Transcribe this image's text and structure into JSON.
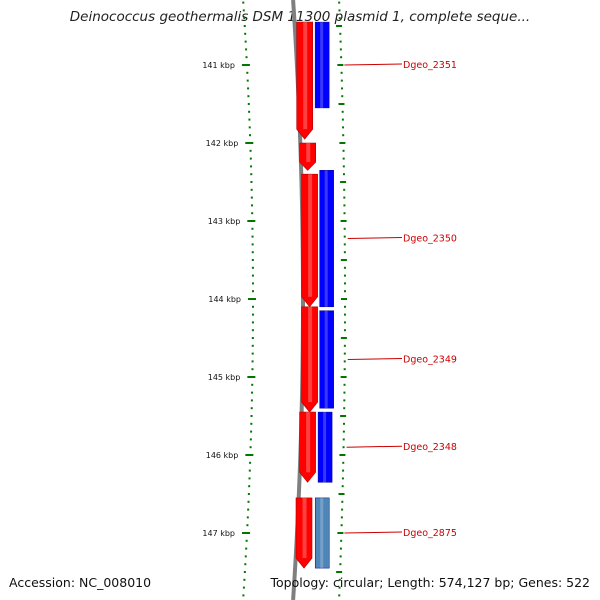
{
  "title": "Deinococcus geothermalis DSM 11300 plasmid 1, complete seque...",
  "footer": {
    "accession": "Accession: NC_008010",
    "summary": "Topology: circular; Length: 574,127 bp; Genes: 522"
  },
  "colors": {
    "forward_cds": "#ff0000",
    "reverse_cds": "#0000ff",
    "reverse_other": "#4f86b8",
    "backbone": "#7f7f7f",
    "tick": "#007700",
    "label": "#cc0000"
  },
  "ticks": [
    {
      "kbp": 141,
      "label": "141 kbp"
    },
    {
      "kbp": 142,
      "label": "142 kbp"
    },
    {
      "kbp": 143,
      "label": "143 kbp"
    },
    {
      "kbp": 144,
      "label": "144 kbp"
    },
    {
      "kbp": 145,
      "label": "145 kbp"
    },
    {
      "kbp": 146,
      "label": "146 kbp"
    },
    {
      "kbp": 147,
      "label": "147 kbp"
    }
  ],
  "genes": [
    {
      "name": "Dgeo_2351",
      "strand": "reverse",
      "start_kbp": 140.45,
      "end_kbp": 141.55
    },
    {
      "name": "Dgeo_2350",
      "strand": "reverse",
      "start_kbp": 142.35,
      "end_kbp": 144.1
    },
    {
      "name": "Dgeo_2349",
      "strand": "reverse",
      "start_kbp": 144.15,
      "end_kbp": 145.4
    },
    {
      "name": "Dgeo_2348",
      "strand": "reverse",
      "start_kbp": 145.45,
      "end_kbp": 146.35
    },
    {
      "name": "Dgeo_2875",
      "strand": "reverse_other",
      "start_kbp": 146.55,
      "end_kbp": 147.45
    }
  ],
  "forward_genes": [
    {
      "start_kbp": 140.45,
      "end_kbp": 141.95
    },
    {
      "start_kbp": 142.0,
      "end_kbp": 142.35
    },
    {
      "start_kbp": 142.4,
      "end_kbp": 144.1
    },
    {
      "start_kbp": 144.1,
      "end_kbp": 145.45
    },
    {
      "start_kbp": 145.45,
      "end_kbp": 146.35
    },
    {
      "start_kbp": 146.55,
      "end_kbp": 147.45
    }
  ]
}
